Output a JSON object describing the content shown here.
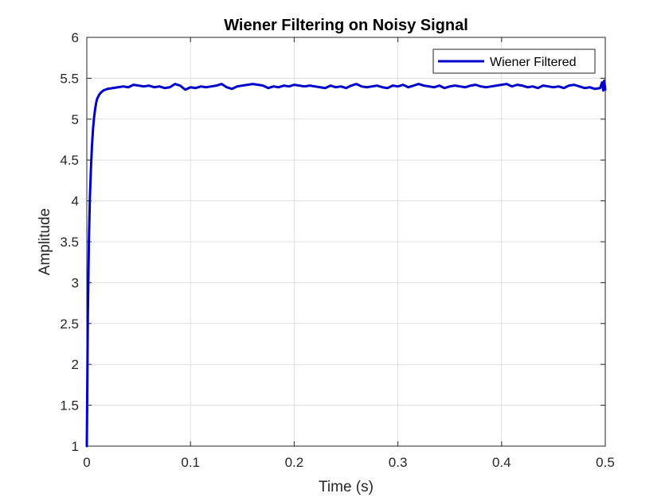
{
  "chart_data": {
    "type": "line",
    "title": "Wiener Filtering on Noisy Signal",
    "xlabel": "Time (s)",
    "ylabel": "Amplitude",
    "xlim": [
      0,
      0.5
    ],
    "ylim": [
      1,
      6
    ],
    "xticks": [
      0,
      0.1,
      0.2,
      0.3,
      0.4,
      0.5
    ],
    "xtick_labels": [
      "0",
      "0.1",
      "0.2",
      "0.3",
      "0.4",
      "0.5"
    ],
    "yticks": [
      1,
      1.5,
      2,
      2.5,
      3,
      3.5,
      4,
      4.5,
      5,
      5.5,
      6
    ],
    "ytick_labels": [
      "1",
      "1.5",
      "2",
      "2.5",
      "3",
      "3.5",
      "4",
      "4.5",
      "5",
      "5.5",
      "6"
    ],
    "grid": true,
    "legend_position": "top-right",
    "series": [
      {
        "name": "Wiener Filtered",
        "color": "#0000cc",
        "x": [
          0,
          0.001,
          0.002,
          0.003,
          0.004,
          0.005,
          0.006,
          0.007,
          0.008,
          0.009,
          0.01,
          0.012,
          0.014,
          0.016,
          0.018,
          0.02,
          0.025,
          0.03,
          0.035,
          0.04,
          0.045,
          0.05,
          0.055,
          0.06,
          0.065,
          0.07,
          0.075,
          0.08,
          0.085,
          0.09,
          0.095,
          0.1,
          0.105,
          0.11,
          0.115,
          0.12,
          0.125,
          0.13,
          0.135,
          0.14,
          0.145,
          0.15,
          0.155,
          0.16,
          0.165,
          0.17,
          0.175,
          0.18,
          0.185,
          0.19,
          0.195,
          0.2,
          0.205,
          0.21,
          0.215,
          0.22,
          0.225,
          0.23,
          0.235,
          0.24,
          0.245,
          0.25,
          0.255,
          0.26,
          0.265,
          0.27,
          0.275,
          0.28,
          0.285,
          0.29,
          0.295,
          0.3,
          0.305,
          0.31,
          0.315,
          0.32,
          0.325,
          0.33,
          0.335,
          0.34,
          0.345,
          0.35,
          0.355,
          0.36,
          0.365,
          0.37,
          0.375,
          0.38,
          0.385,
          0.39,
          0.395,
          0.4,
          0.405,
          0.41,
          0.415,
          0.42,
          0.425,
          0.43,
          0.435,
          0.44,
          0.445,
          0.45,
          0.455,
          0.46,
          0.465,
          0.47,
          0.475,
          0.48,
          0.485,
          0.49,
          0.495,
          0.497,
          0.498,
          0.499,
          0.5
        ],
        "y": [
          1.0,
          2.6,
          3.5,
          4.05,
          4.4,
          4.68,
          4.88,
          5.02,
          5.12,
          5.2,
          5.25,
          5.3,
          5.33,
          5.35,
          5.36,
          5.37,
          5.38,
          5.39,
          5.4,
          5.39,
          5.42,
          5.41,
          5.4,
          5.41,
          5.39,
          5.4,
          5.38,
          5.39,
          5.43,
          5.41,
          5.36,
          5.39,
          5.38,
          5.4,
          5.39,
          5.4,
          5.41,
          5.43,
          5.39,
          5.37,
          5.4,
          5.41,
          5.42,
          5.43,
          5.42,
          5.41,
          5.38,
          5.4,
          5.39,
          5.41,
          5.4,
          5.42,
          5.41,
          5.4,
          5.41,
          5.4,
          5.39,
          5.38,
          5.41,
          5.39,
          5.4,
          5.38,
          5.41,
          5.43,
          5.4,
          5.39,
          5.4,
          5.41,
          5.39,
          5.38,
          5.41,
          5.4,
          5.42,
          5.39,
          5.41,
          5.43,
          5.41,
          5.4,
          5.39,
          5.41,
          5.38,
          5.4,
          5.41,
          5.4,
          5.39,
          5.41,
          5.42,
          5.4,
          5.39,
          5.4,
          5.41,
          5.42,
          5.43,
          5.4,
          5.42,
          5.41,
          5.39,
          5.4,
          5.38,
          5.41,
          5.4,
          5.39,
          5.4,
          5.38,
          5.41,
          5.42,
          5.4,
          5.38,
          5.39,
          5.37,
          5.38,
          5.45,
          5.35,
          5.47,
          5.36
        ]
      }
    ]
  }
}
